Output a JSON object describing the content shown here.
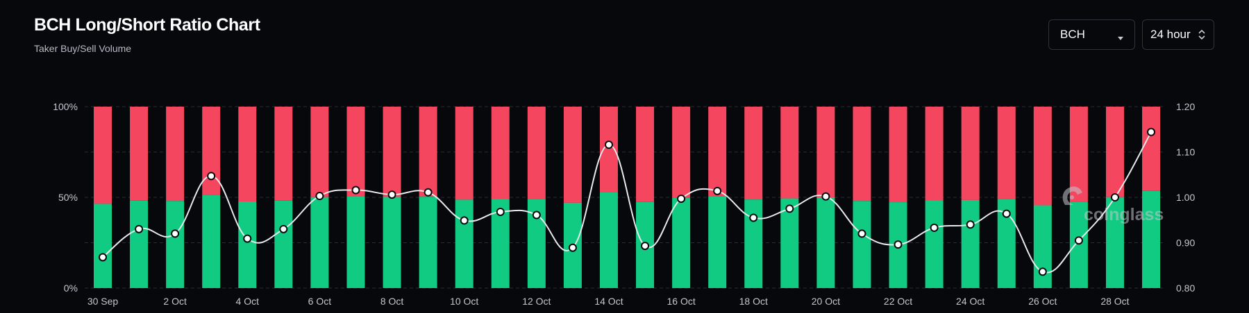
{
  "header": {
    "title": "BCH Long/Short Ratio Chart",
    "subtitle": "Taker Buy/Sell Volume"
  },
  "controls": {
    "symbol_value": "BCH",
    "interval_value": "24 hour"
  },
  "watermark": {
    "text": "coinglass"
  },
  "colors": {
    "long": "#11cb83",
    "short": "#f5465f",
    "ratio_line": "#e9eaee",
    "background": "#07080c"
  },
  "chart_data": {
    "type": "bar",
    "stacked": true,
    "x": [
      "30 Sep",
      "1 Oct",
      "2 Oct",
      "3 Oct",
      "4 Oct",
      "5 Oct",
      "6 Oct",
      "7 Oct",
      "8 Oct",
      "9 Oct",
      "10 Oct",
      "11 Oct",
      "12 Oct",
      "13 Oct",
      "14 Oct",
      "15 Oct",
      "16 Oct",
      "17 Oct",
      "18 Oct",
      "19 Oct",
      "20 Oct",
      "21 Oct",
      "22 Oct",
      "23 Oct",
      "24 Oct",
      "25 Oct",
      "26 Oct",
      "27 Oct",
      "28 Oct",
      "29 Oct"
    ],
    "x_tick_labels": [
      "30 Sep",
      "2 Oct",
      "4 Oct",
      "6 Oct",
      "8 Oct",
      "10 Oct",
      "12 Oct",
      "14 Oct",
      "16 Oct",
      "18 Oct",
      "20 Oct",
      "22 Oct",
      "24 Oct",
      "26 Oct",
      "28 Oct"
    ],
    "series": [
      {
        "role": "long_percent",
        "axis": "left",
        "values": [
          46.4,
          48.2,
          48.0,
          51.4,
          47.7,
          48.2,
          50.1,
          50.7,
          50.2,
          50.3,
          48.7,
          49.2,
          49.0,
          47.0,
          52.9,
          47.4,
          49.9,
          50.7,
          48.8,
          49.4,
          50.0,
          48.0,
          47.3,
          48.3,
          48.5,
          49.1,
          45.6,
          47.6,
          50.1,
          53.5
        ]
      },
      {
        "role": "short_percent",
        "axis": "left",
        "values": [
          53.6,
          51.8,
          52.0,
          48.6,
          52.3,
          51.8,
          49.9,
          49.3,
          49.8,
          49.7,
          51.3,
          50.8,
          51.0,
          53.0,
          47.1,
          52.6,
          50.1,
          49.3,
          51.2,
          50.6,
          50.0,
          52.0,
          52.7,
          51.7,
          51.5,
          50.9,
          54.4,
          52.4,
          49.9,
          46.5
        ]
      },
      {
        "role": "long_short_ratio",
        "type": "line",
        "axis": "right",
        "values": [
          0.868,
          0.93,
          0.92,
          1.047,
          0.909,
          0.93,
          1.003,
          1.016,
          1.006,
          1.011,
          0.949,
          0.968,
          0.961,
          0.889,
          1.116,
          0.893,
          0.997,
          1.014,
          0.955,
          0.975,
          1.002,
          0.92,
          0.896,
          0.933,
          0.94,
          0.964,
          0.836,
          0.905,
          1.0,
          1.144
        ]
      }
    ],
    "y_left": {
      "ticks": [
        "0%",
        "50%",
        "100%"
      ],
      "ylim": [
        0,
        100
      ]
    },
    "y_right": {
      "ticks": [
        "0.80",
        "0.90",
        "1.00",
        "1.10",
        "1.20"
      ],
      "ylim": [
        0.8,
        1.2
      ]
    },
    "grid": true
  }
}
